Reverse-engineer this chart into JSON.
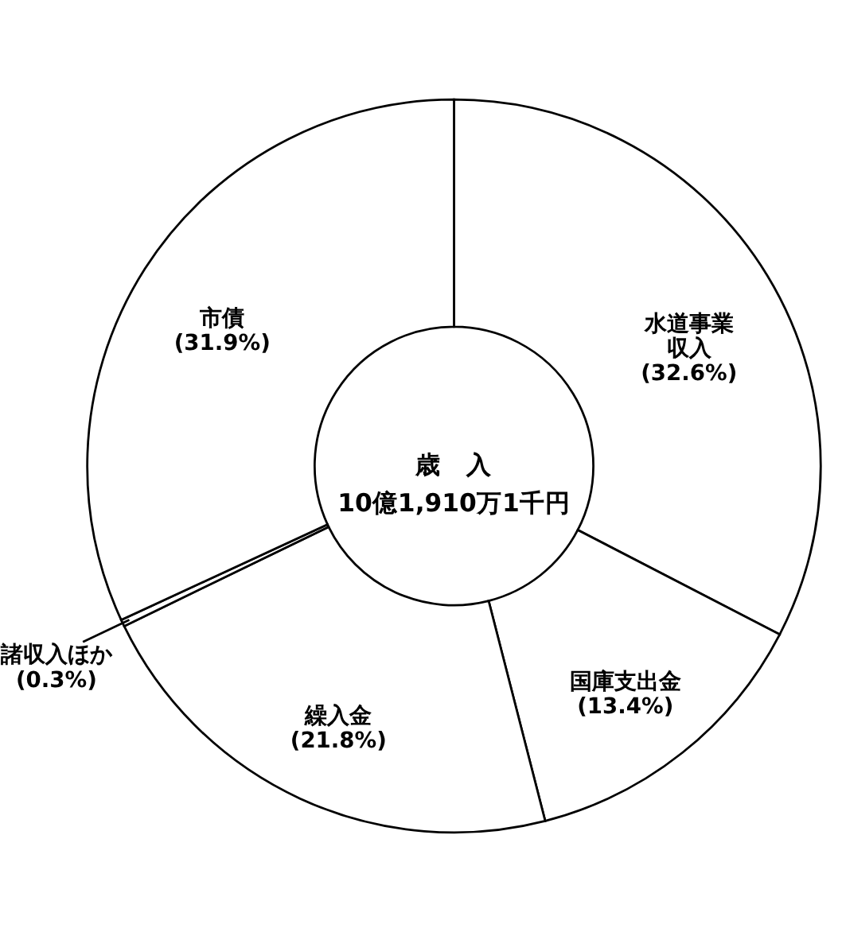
{
  "chart_data": {
    "type": "donut",
    "categories": [
      "水道事業収入",
      "国庫支出金",
      "繰入金",
      "諸収入ほか",
      "市債"
    ],
    "values": [
      32.6,
      13.4,
      21.8,
      0.3,
      31.9
    ],
    "value_labels": [
      "(32.6%)",
      "(13.4%)",
      "(21.8%)",
      "(0.3%)",
      "(31.9%)"
    ],
    "colors": [
      "#ffffff",
      "#ffffff",
      "#ffffff",
      "#ffffff",
      "#ffffff"
    ],
    "annotations": [
      "歳　入",
      "10億1,910万1千円"
    ]
  }
}
